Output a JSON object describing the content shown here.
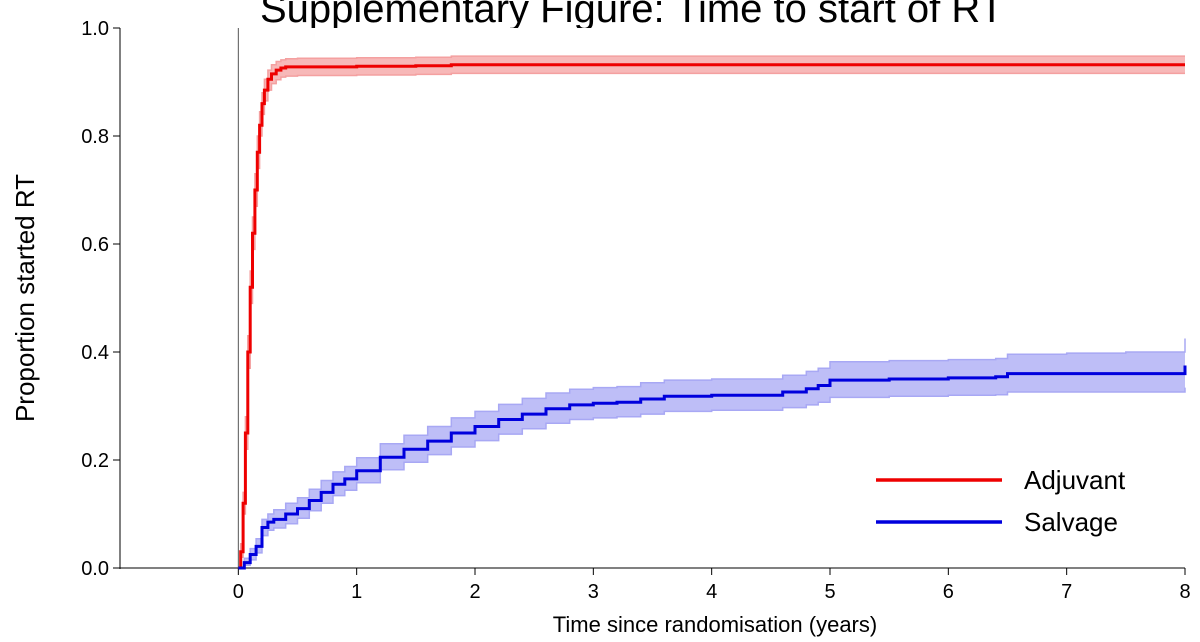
{
  "chart_data": {
    "type": "line",
    "title": "Supplementary Figure: Time to start of RT",
    "xlabel": "Time since randomisation (years)",
    "ylabel": "Proportion started RT",
    "xlim": [
      -1,
      8
    ],
    "ylim": [
      0,
      1
    ],
    "x_ticks": [
      0,
      1,
      2,
      3,
      4,
      5,
      6,
      7,
      8
    ],
    "y_ticks": [
      0.0,
      0.2,
      0.4,
      0.6,
      0.8,
      1.0
    ],
    "x_tick_labels": [
      "0",
      "1",
      "2",
      "3",
      "4",
      "5",
      "6",
      "7",
      "8"
    ],
    "y_tick_labels": [
      "0.0",
      "0.2",
      "0.4",
      "0.6",
      "0.8",
      "1.0"
    ],
    "grid": false,
    "legend": {
      "position": "bottom-right"
    },
    "series": [
      {
        "name": "Adjuvant",
        "color": "#ee0000",
        "band_color": "#f4a0a0",
        "x": [
          0,
          0.02,
          0.04,
          0.06,
          0.08,
          0.1,
          0.12,
          0.14,
          0.16,
          0.18,
          0.2,
          0.22,
          0.25,
          0.28,
          0.32,
          0.36,
          0.4,
          0.5,
          1.0,
          1.5,
          1.8,
          2.0,
          3.0,
          4.0,
          5.0,
          6.0,
          7.0,
          8.0
        ],
        "values": [
          0,
          0.03,
          0.12,
          0.25,
          0.4,
          0.52,
          0.62,
          0.7,
          0.77,
          0.82,
          0.86,
          0.885,
          0.905,
          0.915,
          0.922,
          0.926,
          0.928,
          0.928,
          0.929,
          0.93,
          0.932,
          0.932,
          0.932,
          0.932,
          0.932,
          0.932,
          0.932,
          0.932
        ],
        "lower": [
          0,
          0.02,
          0.1,
          0.22,
          0.37,
          0.49,
          0.59,
          0.67,
          0.74,
          0.8,
          0.84,
          0.865,
          0.885,
          0.897,
          0.904,
          0.909,
          0.911,
          0.912,
          0.913,
          0.914,
          0.916,
          0.916,
          0.916,
          0.916,
          0.916,
          0.916,
          0.916,
          0.916
        ],
        "upper": [
          0,
          0.045,
          0.14,
          0.28,
          0.43,
          0.55,
          0.65,
          0.73,
          0.8,
          0.845,
          0.88,
          0.905,
          0.922,
          0.932,
          0.938,
          0.941,
          0.943,
          0.944,
          0.945,
          0.946,
          0.948,
          0.948,
          0.948,
          0.948,
          0.948,
          0.948,
          0.948,
          0.948
        ]
      },
      {
        "name": "Salvage",
        "color": "#0000dd",
        "band_color": "#a8a8f4",
        "x": [
          0,
          0.05,
          0.1,
          0.15,
          0.2,
          0.25,
          0.3,
          0.4,
          0.5,
          0.6,
          0.7,
          0.8,
          0.9,
          1.0,
          1.2,
          1.4,
          1.6,
          1.8,
          2.0,
          2.2,
          2.4,
          2.6,
          2.8,
          3.0,
          3.2,
          3.4,
          3.6,
          4.0,
          4.4,
          4.6,
          4.8,
          4.9,
          5.0,
          5.5,
          6.0,
          6.4,
          6.5,
          7.0,
          7.5,
          7.95,
          8.0
        ],
        "values": [
          0,
          0.01,
          0.025,
          0.04,
          0.075,
          0.085,
          0.09,
          0.1,
          0.11,
          0.125,
          0.14,
          0.155,
          0.165,
          0.18,
          0.205,
          0.22,
          0.235,
          0.25,
          0.262,
          0.275,
          0.285,
          0.295,
          0.302,
          0.305,
          0.307,
          0.313,
          0.318,
          0.32,
          0.32,
          0.326,
          0.332,
          0.338,
          0.348,
          0.35,
          0.352,
          0.354,
          0.36,
          0.36,
          0.36,
          0.36,
          0.375
        ],
        "lower": [
          0,
          0.005,
          0.015,
          0.028,
          0.06,
          0.07,
          0.074,
          0.082,
          0.092,
          0.106,
          0.12,
          0.134,
          0.144,
          0.158,
          0.182,
          0.196,
          0.21,
          0.224,
          0.236,
          0.248,
          0.258,
          0.268,
          0.275,
          0.278,
          0.28,
          0.285,
          0.29,
          0.292,
          0.292,
          0.297,
          0.302,
          0.307,
          0.316,
          0.318,
          0.32,
          0.321,
          0.326,
          0.326,
          0.326,
          0.326,
          0.334
        ],
        "upper": [
          0,
          0.018,
          0.036,
          0.054,
          0.09,
          0.1,
          0.108,
          0.12,
          0.13,
          0.146,
          0.162,
          0.178,
          0.188,
          0.204,
          0.23,
          0.246,
          0.262,
          0.278,
          0.29,
          0.303,
          0.314,
          0.324,
          0.331,
          0.334,
          0.336,
          0.343,
          0.348,
          0.35,
          0.35,
          0.357,
          0.364,
          0.37,
          0.382,
          0.384,
          0.386,
          0.388,
          0.396,
          0.398,
          0.4,
          0.4,
          0.425
        ]
      }
    ]
  }
}
